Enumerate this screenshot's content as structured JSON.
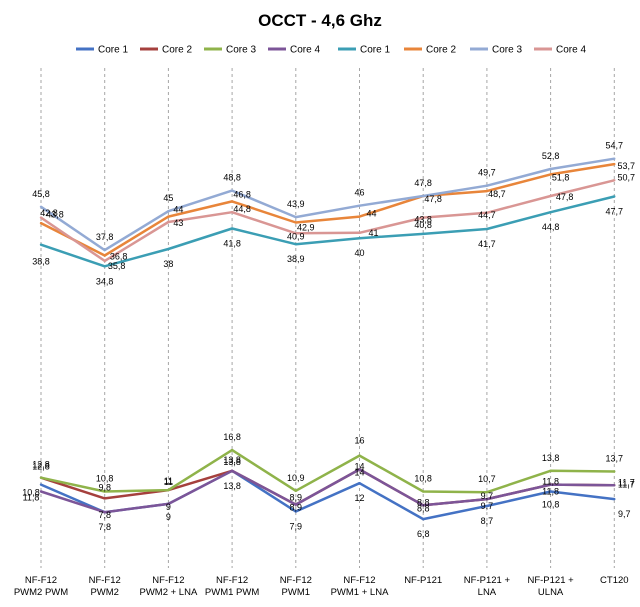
{
  "chart_data": {
    "type": "line",
    "title": "OCCT - 4,6 Ghz",
    "xlabel": "",
    "ylabel": "",
    "grid": "vertical dashed",
    "legend_position": "top",
    "categories": [
      [
        "NF-F12",
        "PWM2 PWM"
      ],
      [
        "NF-F12",
        "PWM2"
      ],
      [
        "NF-F12",
        "PWM2 + LNA"
      ],
      [
        "NF-F12",
        "PWM1 PWM"
      ],
      [
        "NF-F12",
        "PWM1"
      ],
      [
        "NF-F12",
        "PWM1 + LNA"
      ],
      [
        "NF-P121"
      ],
      [
        "NF-P121 +",
        "LNA"
      ],
      [
        "NF-P121 +",
        "ULNA"
      ],
      [
        "CT120"
      ]
    ],
    "series": [
      {
        "name": "Core 1",
        "color": "#4472c4",
        "values": [
          11.8,
          7.8,
          9,
          13.8,
          7.9,
          12,
          6.8,
          8.7,
          10.8,
          9.7
        ]
      },
      {
        "name": "Core 2",
        "color": "#a5403d",
        "values": [
          12.8,
          9.8,
          11,
          13.8,
          8.9,
          14,
          8.8,
          9.7,
          11.8,
          11.7
        ]
      },
      {
        "name": "Core 3",
        "color": "#8fb34a",
        "values": [
          12.8,
          10.8,
          11,
          16.8,
          10.9,
          16,
          10.8,
          10.7,
          13.8,
          13.7
        ]
      },
      {
        "name": "Core 4",
        "color": "#7c5598",
        "values": [
          10.8,
          7.8,
          9,
          13.8,
          8.9,
          14,
          8.8,
          9.7,
          11.8,
          11.7
        ]
      },
      {
        "name": "Core 1",
        "color": "#3b9eb4",
        "values": [
          38.8,
          34.8,
          38,
          41.8,
          38.9,
          40,
          40.8,
          41.7,
          44.8,
          47.7
        ]
      },
      {
        "name": "Core 2",
        "color": "#e8853a",
        "values": [
          42.8,
          36.8,
          44,
          46.8,
          42.9,
          44,
          47.8,
          48.7,
          51.8,
          53.7
        ]
      },
      {
        "name": "Core 3",
        "color": "#93aad4",
        "values": [
          45.8,
          37.8,
          45,
          48.8,
          43.9,
          46,
          47.8,
          49.7,
          52.8,
          54.7
        ]
      },
      {
        "name": "Core 4",
        "color": "#d99694",
        "values": [
          43.8,
          35.8,
          43,
          44.8,
          40.9,
          41,
          43.8,
          44.7,
          47.8,
          50.7
        ]
      }
    ],
    "data_labels": [
      [
        [
          "11,8",
          "7,8",
          "9",
          "13,8",
          "7,9",
          "12",
          "6,8",
          "8,7",
          "10,8",
          "9,7"
        ]
      ],
      [
        [
          "12,8",
          "9,8",
          "11",
          "13,8",
          "8,9",
          "14",
          "8,8",
          "9,7",
          "11,8",
          "11,7"
        ]
      ],
      [
        [
          "12,8",
          "10,8",
          "11",
          "16,8",
          "10,9",
          "16",
          "10,8",
          "10,7",
          "13,8",
          "13,7"
        ]
      ],
      [
        [
          "10,8",
          "7,8",
          "9",
          "13,8",
          "8,9",
          "14",
          "8,8",
          "9,7",
          "11,8",
          "11,7"
        ]
      ],
      [
        [
          "38,8",
          "34,8",
          "38",
          "41,8",
          "38,9",
          "40",
          "40,8",
          "41,7",
          "44,8",
          "47,7"
        ]
      ],
      [
        [
          "42,8",
          "36,8",
          "44",
          "46,8",
          "42,9",
          "44",
          "47,8",
          "48,7",
          "51,8",
          "53,7"
        ]
      ],
      [
        [
          "45,8",
          "37,8",
          "45",
          "48,8",
          "43,9",
          "46",
          "47,8",
          "49,7",
          "52,8",
          "54,7"
        ]
      ],
      [
        [
          "43,8",
          "35,8",
          "43",
          "44,8",
          "40,9",
          "41",
          "43,8",
          "44,7",
          "47,8",
          "50,7"
        ]
      ]
    ]
  }
}
